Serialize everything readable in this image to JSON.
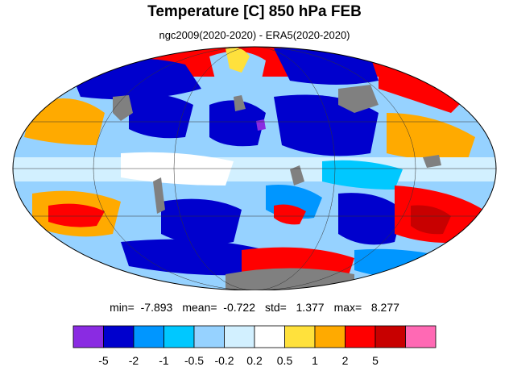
{
  "title": "Temperature [C] 850 hPa FEB",
  "subtitle": "ngc2009(2020-2020) - ERA5(2020-2020)",
  "stats": {
    "min": "min=  -7.893",
    "mean": "mean=  -0.722",
    "std": "std=   1.377",
    "max": "max=   8.277"
  },
  "colorbar": {
    "colors": [
      "#8a2be2",
      "#0000cd",
      "#0096ff",
      "#00c8ff",
      "#96d2ff",
      "#d2f0ff",
      "#ffffff",
      "#ffe13c",
      "#ffaa00",
      "#ff0000",
      "#c80000",
      "#ff69b4"
    ],
    "labels": [
      "-5",
      "-2",
      "-1",
      "-0.5",
      "-0.2",
      "0.2",
      "0.5",
      "1",
      "2",
      "5"
    ]
  },
  "map": {
    "projection": "mollweide",
    "missing_color": "#808080",
    "grid": true
  }
}
